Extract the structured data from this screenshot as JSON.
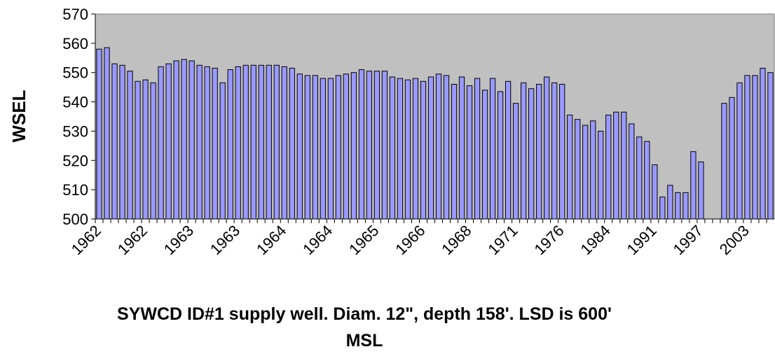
{
  "chart_data": {
    "type": "bar",
    "ylabel": "WSEL",
    "xlabel": "SYWCD ID#1 supply well. Diam. 12\", depth 158'. LSD is 600' MSL",
    "categories": [
      "1962",
      null,
      null,
      null,
      null,
      null,
      "1962",
      null,
      null,
      null,
      null,
      null,
      "1963",
      null,
      null,
      null,
      null,
      null,
      "1963",
      null,
      null,
      null,
      null,
      null,
      "1964",
      null,
      null,
      null,
      null,
      null,
      "1964",
      null,
      null,
      null,
      null,
      null,
      "1965",
      null,
      null,
      null,
      null,
      null,
      "1966",
      null,
      null,
      null,
      null,
      null,
      "1968",
      null,
      null,
      null,
      null,
      null,
      "1971",
      null,
      null,
      null,
      null,
      null,
      "1976",
      null,
      null,
      null,
      null,
      null,
      "1984",
      null,
      null,
      null,
      null,
      null,
      "1991",
      null,
      null,
      null,
      null,
      null,
      "1997",
      null,
      null,
      null,
      null,
      null,
      "2003",
      null,
      null,
      null
    ],
    "values": [
      558,
      558.5,
      553,
      552.5,
      550.5,
      547,
      547.5,
      546.5,
      552,
      553,
      554,
      554.5,
      554,
      552.5,
      552,
      551.5,
      546.5,
      551,
      552,
      552.5,
      552.5,
      552.5,
      552.5,
      552.5,
      552,
      551.5,
      549.5,
      549,
      549,
      548,
      548,
      549,
      549.5,
      550,
      551,
      550.5,
      550.5,
      550.5,
      548.5,
      548,
      547.5,
      548,
      547,
      548.5,
      549.5,
      549,
      546,
      548.5,
      545.5,
      548,
      544,
      548,
      543.5,
      547,
      539.5,
      546.5,
      544.5,
      546,
      548.5,
      546.5,
      546,
      535.5,
      534,
      532,
      533.5,
      530,
      535.5,
      536.5,
      536.5,
      532.5,
      528,
      526.5,
      518.5,
      507.5,
      511.5,
      509,
      509,
      523,
      519.5,
      null,
      null,
      539.5,
      541.5,
      546.5,
      549,
      549,
      551.5,
      550
    ],
    "color": "#9999ff",
    "plot_background": "#c0c0c0",
    "ylim": [
      500,
      570
    ],
    "yticks": [
      500,
      510,
      520,
      530,
      540,
      550,
      560,
      570
    ]
  }
}
